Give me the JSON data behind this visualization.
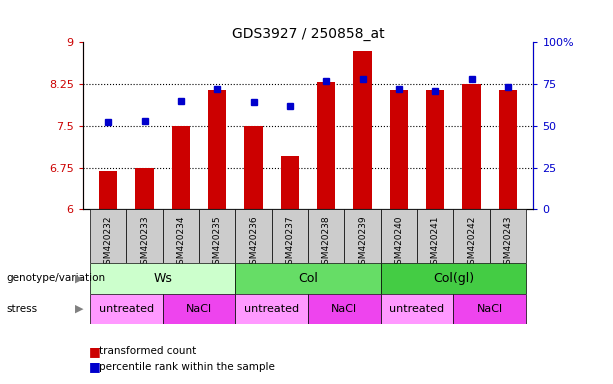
{
  "title": "GDS3927 / 250858_at",
  "samples": [
    "GSM420232",
    "GSM420233",
    "GSM420234",
    "GSM420235",
    "GSM420236",
    "GSM420237",
    "GSM420238",
    "GSM420239",
    "GSM420240",
    "GSM420241",
    "GSM420242",
    "GSM420243"
  ],
  "red_values": [
    6.68,
    6.75,
    7.5,
    8.15,
    7.5,
    6.95,
    8.28,
    8.85,
    8.15,
    8.15,
    8.25,
    8.15
  ],
  "blue_values": [
    52,
    53,
    65,
    72,
    64,
    62,
    77,
    78,
    72,
    71,
    78,
    73
  ],
  "ylim_left": [
    6,
    9
  ],
  "ylim_right": [
    0,
    100
  ],
  "yticks_left": [
    6,
    6.75,
    7.5,
    8.25,
    9
  ],
  "yticks_right": [
    0,
    25,
    50,
    75,
    100
  ],
  "ytick_labels_left": [
    "6",
    "6.75",
    "7.5",
    "8.25",
    "9"
  ],
  "ytick_labels_right": [
    "0",
    "25",
    "50",
    "75",
    "100%"
  ],
  "grid_yticks": [
    6.75,
    7.5,
    8.25
  ],
  "genotype_groups": [
    {
      "label": "Ws",
      "start": 0,
      "end": 4,
      "color": "#ccffcc"
    },
    {
      "label": "Col",
      "start": 4,
      "end": 8,
      "color": "#66dd66"
    },
    {
      "label": "Col(gl)",
      "start": 8,
      "end": 12,
      "color": "#44cc44"
    }
  ],
  "stress_groups": [
    {
      "label": "untreated",
      "start": 0,
      "end": 2,
      "color": "#ff99ff"
    },
    {
      "label": "NaCl",
      "start": 2,
      "end": 4,
      "color": "#ee44ee"
    },
    {
      "label": "untreated",
      "start": 4,
      "end": 6,
      "color": "#ff99ff"
    },
    {
      "label": "NaCl",
      "start": 6,
      "end": 8,
      "color": "#ee44ee"
    },
    {
      "label": "untreated",
      "start": 8,
      "end": 10,
      "color": "#ff99ff"
    },
    {
      "label": "NaCl",
      "start": 10,
      "end": 12,
      "color": "#ee44ee"
    }
  ],
  "red_color": "#cc0000",
  "blue_color": "#0000cc",
  "tick_color_left": "#cc0000",
  "tick_color_right": "#0000cc",
  "bar_width": 0.5,
  "marker_size": 5,
  "ybase": 6,
  "xtick_bg": "#cccccc",
  "label_geno": "genotype/variation",
  "label_stress": "stress",
  "legend_red": "transformed count",
  "legend_blue": "percentile rank within the sample"
}
